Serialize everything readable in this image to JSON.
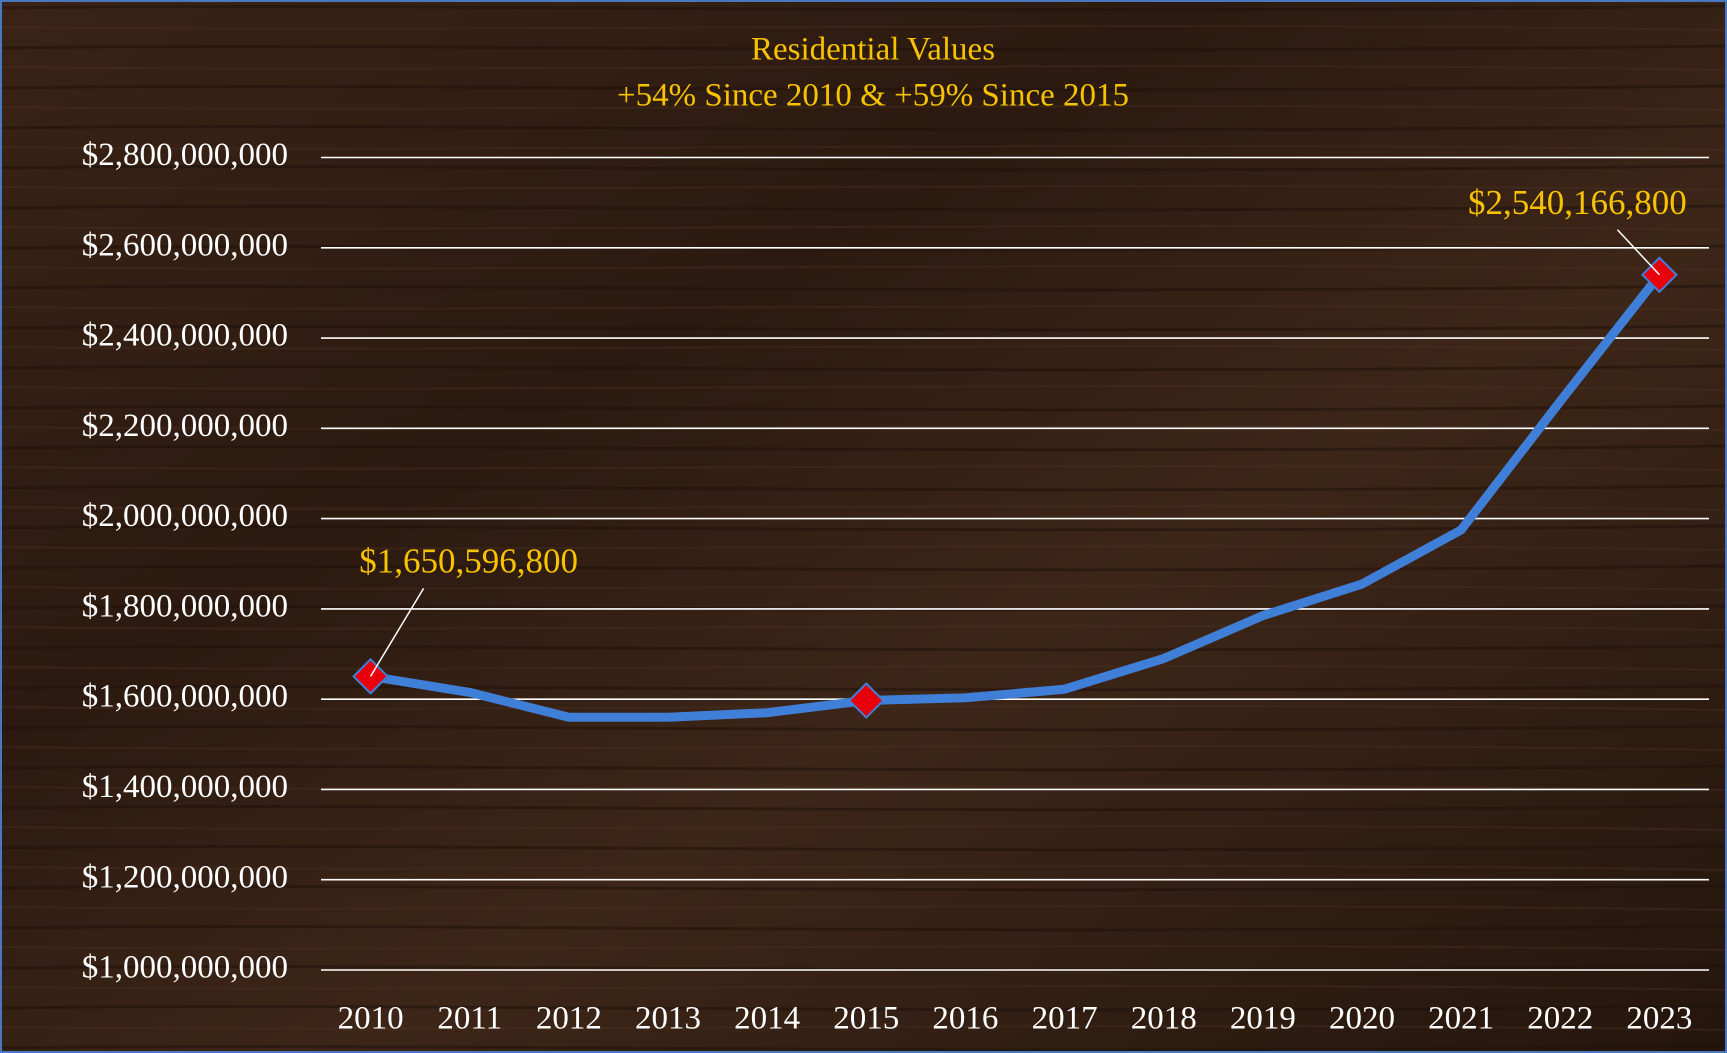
{
  "chart_data": {
    "type": "line",
    "title": "Residential Values",
    "subtitle": "+54% Since 2010 & +59% Since 2015",
    "categories": [
      "2010",
      "2011",
      "2012",
      "2013",
      "2014",
      "2015",
      "2016",
      "2017",
      "2018",
      "2019",
      "2020",
      "2021",
      "2022",
      "2023"
    ],
    "series": [
      {
        "name": "Residential Values",
        "color": "#3f7fd8",
        "values": [
          1650596800,
          1615000000,
          1560000000,
          1560000000,
          1570000000,
          1597000000,
          1603000000,
          1622000000,
          1690000000,
          1785000000,
          1855000000,
          1975000000,
          2260000000,
          2540166800
        ],
        "value_labels": [
          "$1,650,596,800",
          null,
          null,
          null,
          null,
          null,
          null,
          null,
          null,
          null,
          null,
          null,
          null,
          "$2,540,166,800"
        ],
        "markers": [
          0,
          5,
          13
        ],
        "marker_color": "#e8000b"
      }
    ],
    "ylim": [
      1000000000,
      2800000000
    ],
    "yticks": [
      {
        "value": 1000000000,
        "label": "$1,000,000,000"
      },
      {
        "value": 1200000000,
        "label": "$1,200,000,000"
      },
      {
        "value": 1400000000,
        "label": "$1,400,000,000"
      },
      {
        "value": 1600000000,
        "label": "$1,600,000,000"
      },
      {
        "value": 1800000000,
        "label": "$1,800,000,000"
      },
      {
        "value": 2000000000,
        "label": "$2,000,000,000"
      },
      {
        "value": 2200000000,
        "label": "$2,200,000,000"
      },
      {
        "value": 2400000000,
        "label": "$2,400,000,000"
      },
      {
        "value": 2600000000,
        "label": "$2,600,000,000"
      },
      {
        "value": 2800000000,
        "label": "$2,800,000,000"
      }
    ],
    "grid": true
  }
}
